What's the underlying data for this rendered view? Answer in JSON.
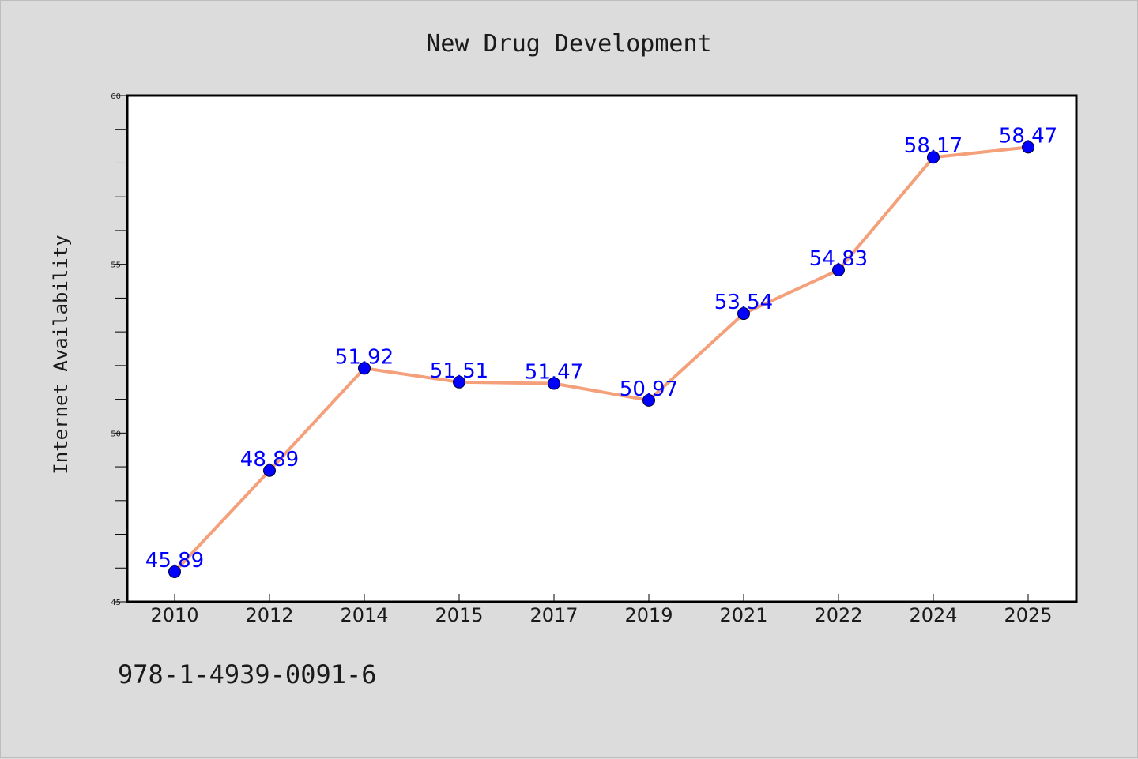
{
  "chart_data": {
    "type": "line",
    "title": "New Drug Development",
    "xlabel": "",
    "ylabel": "Internet Availability",
    "categories": [
      "2010",
      "2012",
      "2014",
      "2015",
      "2017",
      "2019",
      "2021",
      "2022",
      "2024",
      "2025"
    ],
    "series": [
      {
        "values": [
          45.89,
          48.89,
          51.92,
          51.51,
          51.47,
          50.97,
          53.54,
          54.83,
          58.17,
          58.47
        ],
        "labels": [
          "45.89",
          "48.89",
          "51.92",
          "51.51",
          "51.47",
          "50.97",
          "53.54",
          "54.83",
          "58.17",
          "58.47"
        ],
        "line_color": "#f4a07a",
        "marker_color": "#0000ff"
      }
    ],
    "ylim": [
      45,
      60
    ],
    "yticks": [
      "45",
      "50",
      "55",
      "60"
    ],
    "grid": false,
    "legend": "none"
  },
  "footnote": "978-1-4939-0091-6"
}
